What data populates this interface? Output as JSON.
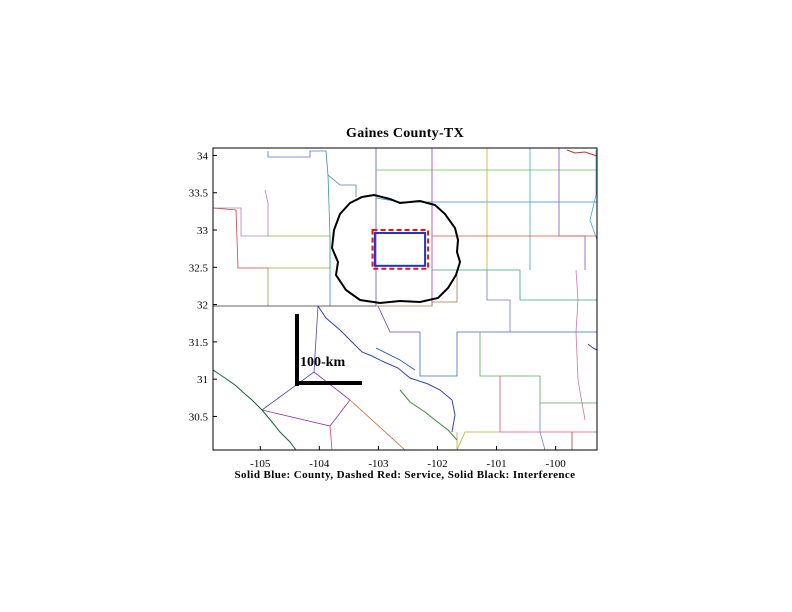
{
  "title": "Gaines County-TX",
  "caption": "Solid Blue: County, Dashed Red: Service, Solid Black: Interference",
  "scale_bar_label": "100-km",
  "axes": {
    "xlim": [
      -105.8,
      -99.3
    ],
    "ylim": [
      30.05,
      34.1
    ],
    "x_ticks": [
      -105,
      -104,
      -103,
      -102,
      -101,
      -100
    ],
    "y_ticks": [
      30.5,
      31,
      31.5,
      32,
      32.5,
      33,
      33.5,
      34
    ]
  },
  "layers": {
    "county": {
      "color": "#2233cc",
      "style": "solid",
      "bounds": {
        "lon": [
          -103.06,
          -102.21
        ],
        "lat": [
          32.52,
          32.96
        ]
      }
    },
    "service": {
      "color": "#ee1111",
      "style": "dashed",
      "bounds": {
        "lon": [
          -103.1,
          -102.16
        ],
        "lat": [
          32.48,
          33.0
        ]
      }
    },
    "interference": {
      "color": "#000000",
      "style": "solid"
    }
  }
}
